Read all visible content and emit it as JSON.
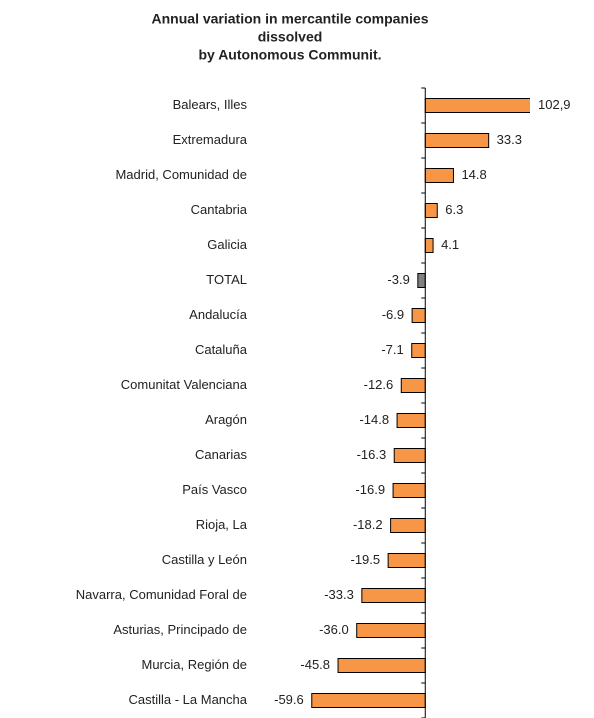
{
  "chart_data": {
    "type": "barh",
    "title": [
      "Annual variation in  mercantile companies",
      "dissolved",
      "by Autonomous Communit."
    ],
    "categories": [
      "Balears, Illes",
      "Extremadura",
      "Madrid, Comunidad de",
      "Cantabria",
      "Galicia",
      "TOTAL",
      "Andalucía",
      "Cataluña",
      "Comunitat Valenciana",
      "Aragón",
      "Canarias",
      "País Vasco",
      "Rioja, La",
      "Castilla y León",
      "Navarra, Comunidad Foral de",
      "Asturias, Principado de",
      "Murcia, Región de",
      "Castilla - La Mancha"
    ],
    "values": [
      102.9,
      33.3,
      14.8,
      6.3,
      4.1,
      -3.9,
      -6.9,
      -7.1,
      -12.6,
      -14.8,
      -16.3,
      -16.9,
      -18.2,
      -19.5,
      -33.3,
      -36.0,
      -45.8,
      -59.6
    ],
    "value_labels": [
      "102,9",
      "33.3",
      "14.8",
      "6.3",
      "4.1",
      "-3.9",
      "-6.9",
      "-7.1",
      "-12.6",
      "-14.8",
      "-16.3",
      "-16.9",
      "-18.2",
      "-19.5",
      "-33.3",
      "-36.0",
      "-45.8",
      "-59.6"
    ],
    "colors": [
      "#f79646",
      "#f79646",
      "#f79646",
      "#f79646",
      "#f79646",
      "#808080",
      "#f79646",
      "#f79646",
      "#f79646",
      "#f79646",
      "#f79646",
      "#f79646",
      "#f79646",
      "#f79646",
      "#f79646",
      "#f79646",
      "#f79646",
      "#f79646"
    ],
    "xlim": [
      -60,
      55
    ]
  }
}
